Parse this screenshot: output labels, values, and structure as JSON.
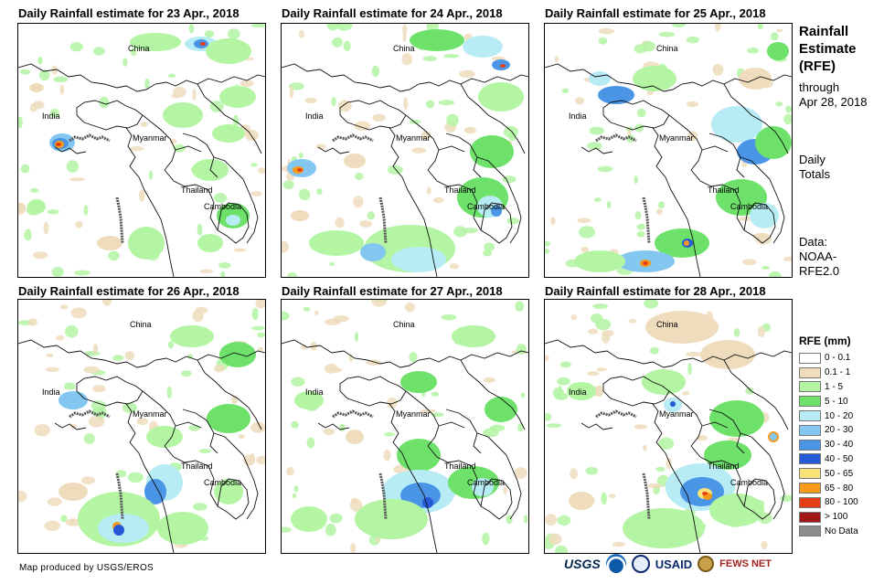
{
  "panels": [
    {
      "title": "Daily Rainfall estimate for 23 Apr., 2018"
    },
    {
      "title": "Daily Rainfall estimate for 24 Apr., 2018"
    },
    {
      "title": "Daily Rainfall estimate for 25 Apr., 2018"
    },
    {
      "title": "Daily Rainfall estimate for 26 Apr., 2018"
    },
    {
      "title": "Daily Rainfall estimate for 27 Apr., 2018"
    },
    {
      "title": "Daily Rainfall estimate for 28 Apr., 2018"
    }
  ],
  "map_labels": {
    "china": "China",
    "india": "India",
    "myanmar": "Myanmar",
    "thailand": "Thailand",
    "cambodia": "Cambodia"
  },
  "side": {
    "title_line1": "Rainfall",
    "title_line2": "Estimate",
    "title_line3": "(RFE)",
    "through_label": "through",
    "through_date": "Apr 28, 2018",
    "totals_line1": "Daily",
    "totals_line2": "Totals",
    "data_line1": "Data:",
    "data_line2": "NOAA-",
    "data_line3": "RFE2.0"
  },
  "legend": {
    "title": "RFE (mm)",
    "items": [
      {
        "label": "0 - 0.1",
        "color": "#ffffff"
      },
      {
        "label": "0.1 - 1",
        "color": "#eedcbd"
      },
      {
        "label": "1 - 5",
        "color": "#b3f5a3"
      },
      {
        "label": "5 - 10",
        "color": "#6ee16b"
      },
      {
        "label": "10 - 20",
        "color": "#b7ecf5"
      },
      {
        "label": "20 - 30",
        "color": "#83c7f0"
      },
      {
        "label": "30 - 40",
        "color": "#4a95e6"
      },
      {
        "label": "40 - 50",
        "color": "#2559d8"
      },
      {
        "label": "50 - 65",
        "color": "#f9e27a"
      },
      {
        "label": "65 - 80",
        "color": "#f59a1b"
      },
      {
        "label": "80 - 100",
        "color": "#e63e14"
      },
      {
        "label": "> 100",
        "color": "#a01616"
      },
      {
        "label": "No Data",
        "color": "#8c8c8c"
      }
    ]
  },
  "credit": "Map produced by USGS/EROS",
  "logos": {
    "usgs": "USGS",
    "usaid": "USAID",
    "fews": "FEWS NET"
  }
}
